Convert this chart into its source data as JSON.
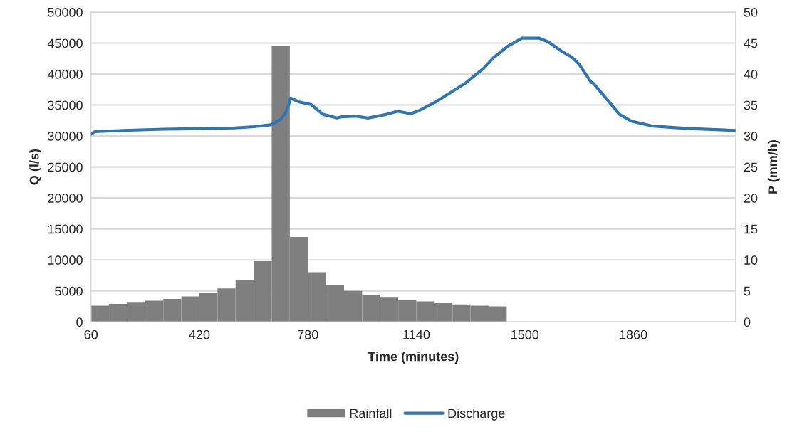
{
  "chart_data": {
    "type": "line",
    "xlabel": "Time (minutes)",
    "ylabel": "Q (l/s)",
    "y2label": "P (mm/h)",
    "xlim": [
      60,
      2200
    ],
    "xticks": [
      60,
      420,
      780,
      1140,
      1500,
      1860
    ],
    "ylim": [
      0,
      50000
    ],
    "yticks": [
      0,
      5000,
      10000,
      15000,
      20000,
      25000,
      30000,
      35000,
      40000,
      45000,
      50000
    ],
    "y2lim": [
      0,
      50
    ],
    "y2ticks": [
      0,
      5,
      10,
      15,
      20,
      25,
      30,
      35,
      40,
      45,
      50
    ],
    "grid": true,
    "legend": "bottom",
    "series": [
      {
        "name": "Rainfall",
        "type": "bar",
        "axis": "y2",
        "color": "#7f7f7f",
        "x": [
          90,
          150,
          210,
          270,
          330,
          390,
          450,
          510,
          570,
          630,
          690,
          750,
          810,
          870,
          930,
          990,
          1050,
          1110,
          1170,
          1230,
          1290,
          1350,
          1410
        ],
        "values": [
          2.6,
          2.9,
          3.1,
          3.4,
          3.7,
          4.1,
          4.7,
          5.4,
          6.8,
          9.8,
          44.6,
          13.7,
          8.0,
          6.0,
          5.0,
          4.3,
          3.9,
          3.5,
          3.3,
          3.0,
          2.8,
          2.6,
          2.5
        ]
      },
      {
        "name": "Discharge",
        "color": "#2e75b6",
        "x": [
          60,
          73,
          168,
          302,
          420,
          538,
          601,
          656,
          688,
          708,
          723,
          751,
          790,
          830,
          877,
          893,
          940,
          979,
          1042,
          1078,
          1121,
          1145,
          1208,
          1302,
          1365,
          1397,
          1444,
          1491,
          1547,
          1578,
          1625,
          1657,
          1680,
          1720,
          1728,
          1775,
          1814,
          1854,
          1925,
          2043,
          2200
        ],
        "values": [
          30300,
          30700,
          30900,
          31100,
          31200,
          31300,
          31500,
          31800,
          32600,
          33900,
          36100,
          35500,
          35100,
          33500,
          32900,
          33100,
          33200,
          32900,
          33500,
          34000,
          33600,
          34000,
          35600,
          38500,
          41000,
          42700,
          44500,
          45800,
          45800,
          45200,
          43600,
          42700,
          41600,
          38700,
          38500,
          35800,
          33500,
          32400,
          31600,
          31200,
          30900
        ]
      }
    ]
  }
}
